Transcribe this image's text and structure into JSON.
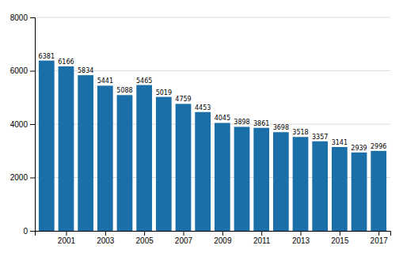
{
  "chart_data": {
    "type": "bar",
    "x": [
      2000,
      2001,
      2002,
      2003,
      2004,
      2005,
      2006,
      2007,
      2008,
      2009,
      2010,
      2011,
      2012,
      2013,
      2014,
      2015,
      2016,
      2017
    ],
    "values": [
      6381,
      6166,
      5834,
      5441,
      5088,
      5465,
      5019,
      4759,
      4453,
      4045,
      3898,
      3861,
      3698,
      3518,
      3357,
      3141,
      2939,
      2996
    ],
    "color": "#1a6fa8",
    "xlim": [
      1999.4,
      2017.6
    ],
    "xticks": [
      2001,
      2003,
      2005,
      2007,
      2009,
      2011,
      2013,
      2015,
      2017
    ],
    "ylim": [
      0,
      8000
    ],
    "yticks": [
      0,
      2000,
      4000,
      6000,
      8000
    ],
    "grid": true,
    "data_labels": true
  }
}
